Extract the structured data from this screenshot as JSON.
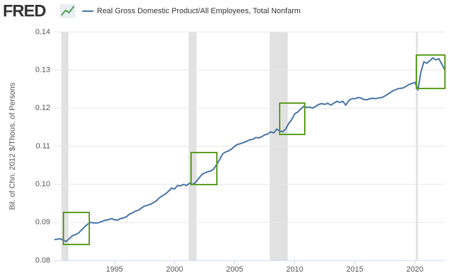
{
  "logo": "FRED",
  "chart_data": {
    "type": "line",
    "ylabel": "Bil. of Chn. 2012 $/Thous. of Persons",
    "x": [
      1990,
      1990.25,
      1990.5,
      1990.75,
      1991,
      1991.25,
      1991.5,
      1991.75,
      1992,
      1992.25,
      1992.5,
      1992.75,
      1993,
      1993.25,
      1993.5,
      1993.75,
      1994,
      1994.25,
      1994.5,
      1994.75,
      1995,
      1995.25,
      1995.5,
      1995.75,
      1996,
      1996.25,
      1996.5,
      1996.75,
      1997,
      1997.25,
      1997.5,
      1997.75,
      1998,
      1998.25,
      1998.5,
      1998.75,
      1999,
      1999.25,
      1999.5,
      1999.75,
      2000,
      2000.25,
      2000.5,
      2000.75,
      2001,
      2001.25,
      2001.5,
      2001.75,
      2002,
      2002.25,
      2002.5,
      2002.75,
      2003,
      2003.25,
      2003.5,
      2003.75,
      2004,
      2004.25,
      2004.5,
      2004.75,
      2005,
      2005.25,
      2005.5,
      2005.75,
      2006,
      2006.25,
      2006.5,
      2006.75,
      2007,
      2007.25,
      2007.5,
      2007.75,
      2008,
      2008.25,
      2008.5,
      2008.75,
      2009,
      2009.25,
      2009.5,
      2009.75,
      2010,
      2010.25,
      2010.5,
      2010.75,
      2011,
      2011.25,
      2011.5,
      2011.75,
      2012,
      2012.25,
      2012.5,
      2012.75,
      2013,
      2013.25,
      2013.5,
      2013.75,
      2014,
      2014.25,
      2014.5,
      2014.75,
      2015,
      2015.25,
      2015.5,
      2015.75,
      2016,
      2016.25,
      2016.5,
      2016.75,
      2017,
      2017.25,
      2017.5,
      2017.75,
      2018,
      2018.25,
      2018.5,
      2018.75,
      2019,
      2019.25,
      2019.5,
      2019.75,
      2020,
      2020.25,
      2020.5,
      2020.75,
      2021,
      2021.25,
      2021.5,
      2021.75,
      2022,
      2022.25,
      2022.5
    ],
    "series": [
      {
        "name": "Real Gross Domestic Product/All Employees, Total Nonfarm",
        "color": "#4572a7",
        "values": [
          0.0855,
          0.0856,
          0.0857,
          0.0853,
          0.085,
          0.0858,
          0.0865,
          0.0868,
          0.0872,
          0.088,
          0.0888,
          0.0895,
          0.09,
          0.0899,
          0.0898,
          0.09,
          0.0903,
          0.0906,
          0.0907,
          0.091,
          0.0907,
          0.0906,
          0.091,
          0.0912,
          0.0915,
          0.0922,
          0.0925,
          0.093,
          0.0932,
          0.0938,
          0.0943,
          0.0945,
          0.0948,
          0.0952,
          0.0957,
          0.0965,
          0.097,
          0.0975,
          0.0982,
          0.099,
          0.0988,
          0.0997,
          0.0996,
          0.1,
          0.0997,
          0.1003,
          0.1,
          0.1005,
          0.1015,
          0.1025,
          0.103,
          0.1033,
          0.1035,
          0.104,
          0.1052,
          0.1065,
          0.108,
          0.1085,
          0.1088,
          0.1093,
          0.11,
          0.1105,
          0.1107,
          0.111,
          0.1113,
          0.1117,
          0.1118,
          0.1123,
          0.1122,
          0.1125,
          0.113,
          0.1132,
          0.1138,
          0.1135,
          0.1145,
          0.114,
          0.1138,
          0.1145,
          0.116,
          0.117,
          0.1185,
          0.119,
          0.1198,
          0.1205,
          0.1202,
          0.1203,
          0.12,
          0.1205,
          0.121,
          0.1212,
          0.121,
          0.1213,
          0.1208,
          0.1213,
          0.1218,
          0.1215,
          0.1218,
          0.1208,
          0.122,
          0.1225,
          0.1225,
          0.1228,
          0.1227,
          0.1223,
          0.1222,
          0.1225,
          0.1226,
          0.1225,
          0.1227,
          0.1228,
          0.1232,
          0.1237,
          0.1242,
          0.1247,
          0.125,
          0.1252,
          0.1253,
          0.1257,
          0.1262,
          0.1265,
          0.1268,
          0.1248,
          0.1295,
          0.1322,
          0.1318,
          0.1325,
          0.1332,
          0.1327,
          0.133,
          0.1315,
          0.13
        ]
      }
    ],
    "recessions": [
      [
        1990.58,
        1991.17
      ],
      [
        2001.17,
        2001.83
      ],
      [
        2007.92,
        2009.42
      ],
      [
        2020.08,
        2020.25
      ]
    ],
    "xlim": [
      1990,
      2022.5
    ],
    "xticks": [
      1995,
      2000,
      2005,
      2010,
      2015,
      2020
    ],
    "ylim": [
      0.08,
      0.14
    ],
    "yticks": [
      0.08,
      0.09,
      {
        "value": 0.1,
        "label": "0.10"
      },
      0.11,
      0.12,
      0.13,
      0.14
    ],
    "grid": true
  }
}
